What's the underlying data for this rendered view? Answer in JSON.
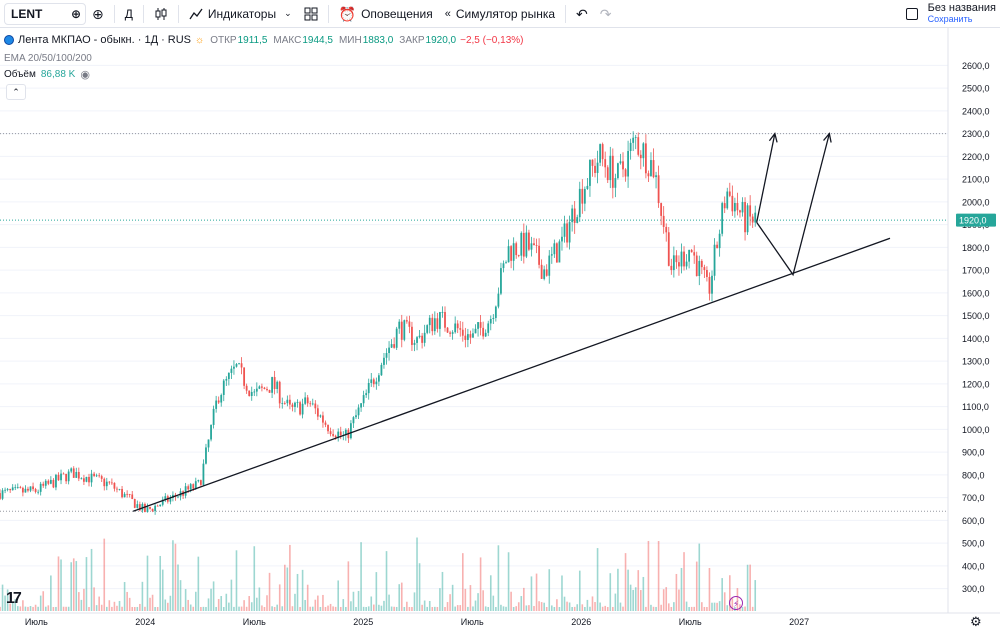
{
  "toolbar": {
    "symbol": "LENT",
    "interval": "Д",
    "indicators_label": "Индикаторы",
    "alerts_label": "Оповещения",
    "replay_label": "Симулятор рынка",
    "layout_title": "Без названия",
    "save_label": "Сохранить"
  },
  "legend": {
    "name": "Лента МКПАО - обыкн. · 1Д · RUS",
    "open_label": "ОТКР",
    "open": "1911,5",
    "high_label": "МАКС",
    "high": "1944,5",
    "low_label": "МИН",
    "low": "1883,0",
    "close_label": "ЗАКР",
    "close": "1920,0",
    "change": "−2,5 (−0,13%)",
    "ema": "EMA 20/50/100/200",
    "volume_label": "Объём",
    "volume_value": "86,88 K"
  },
  "price_axis": {
    "ticks": [
      "2600,0",
      "2500,0",
      "2400,0",
      "2300,0",
      "2200,0",
      "2100,0",
      "2000,0",
      "1900,0",
      "1800,0",
      "1700,0",
      "1600,0",
      "1500,0",
      "1400,0",
      "1300,0",
      "1200,0",
      "1100,0",
      "1000,0",
      "900,0",
      "800,0",
      "700,0",
      "600,0",
      "500,0",
      "400,0",
      "300,0"
    ],
    "last_price": "1920,0"
  },
  "time_axis": {
    "ticks": [
      "Июль",
      "2024",
      "Июль",
      "2025",
      "Июль",
      "2026",
      "Июль",
      "2027"
    ]
  },
  "colors": {
    "up": "#26a69a",
    "down": "#ef5350",
    "last_line": "#26a69a",
    "trendline": "#131722"
  },
  "chart_data": {
    "type": "candlestick",
    "symbol": "LENT",
    "ylim": [
      250,
      2650
    ],
    "last": 1920,
    "path": [
      [
        "2023-05",
        720
      ],
      [
        "2023-07",
        730
      ],
      [
        "2023-09",
        810
      ],
      [
        "2023-11",
        760
      ],
      [
        "2024-01",
        640
      ],
      [
        "2024-03",
        720
      ],
      [
        "2024-04",
        760
      ],
      [
        "2024-05",
        1150
      ],
      [
        "2024-06",
        1270
      ],
      [
        "2024-07",
        1150
      ],
      [
        "2024-08",
        1200
      ],
      [
        "2024-09",
        1080
      ],
      [
        "2024-10",
        1120
      ],
      [
        "2024-11",
        1020
      ],
      [
        "2024-12",
        960
      ],
      [
        "2025-01",
        1120
      ],
      [
        "2025-02",
        1300
      ],
      [
        "2025-03",
        1450
      ],
      [
        "2025-04",
        1390
      ],
      [
        "2025-05",
        1490
      ],
      [
        "2025-06",
        1450
      ],
      [
        "2025-07",
        1400
      ],
      [
        "2025-08",
        1490
      ],
      [
        "2025-09",
        1790
      ],
      [
        "2025-10",
        1810
      ],
      [
        "2025-11",
        1700
      ],
      [
        "2025-12",
        1830
      ],
      [
        "2026-01",
        2050
      ],
      [
        "2026-02",
        2200
      ],
      [
        "2026-03",
        2100
      ],
      [
        "2026-04",
        2270
      ],
      [
        "2026-05",
        2150
      ],
      [
        "2026-06",
        1700
      ],
      [
        "2026-07",
        1800
      ],
      [
        "2026-08",
        1600
      ],
      [
        "2026-09",
        2050
      ],
      [
        "2026-10",
        1920
      ]
    ],
    "trendline": [
      [
        "2023-12",
        640
      ],
      [
        "2027-06",
        1840
      ]
    ],
    "projection_arrows": [
      [
        [
          "2026-10",
          1910
        ],
        [
          "2026-11",
          2300
        ]
      ],
      [
        [
          "2026-10",
          1910
        ],
        [
          "2026-12",
          1680
        ],
        [
          "2027-02",
          2300
        ]
      ]
    ],
    "horizontal_levels": [
      2300,
      640
    ]
  }
}
